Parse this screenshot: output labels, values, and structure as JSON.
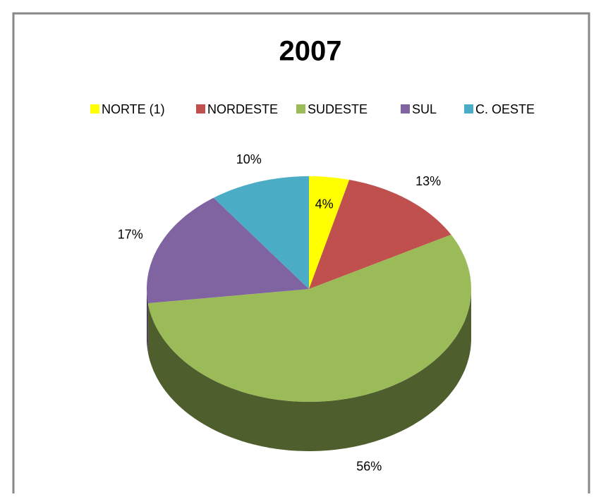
{
  "chart_data": {
    "type": "pie3d",
    "title": "2007",
    "categories": [
      "NORTE (1)",
      "NORDESTE",
      "SUDESTE",
      "SUL",
      "C. OESTE"
    ],
    "values": [
      4,
      13,
      56,
      17,
      10
    ],
    "value_labels": [
      "4%",
      "13%",
      "56%",
      "17%",
      "10%"
    ],
    "colors": [
      "#ffff00",
      "#c0504d",
      "#9bbb59",
      "#8064a2",
      "#4bacc6"
    ],
    "legend": "top"
  }
}
